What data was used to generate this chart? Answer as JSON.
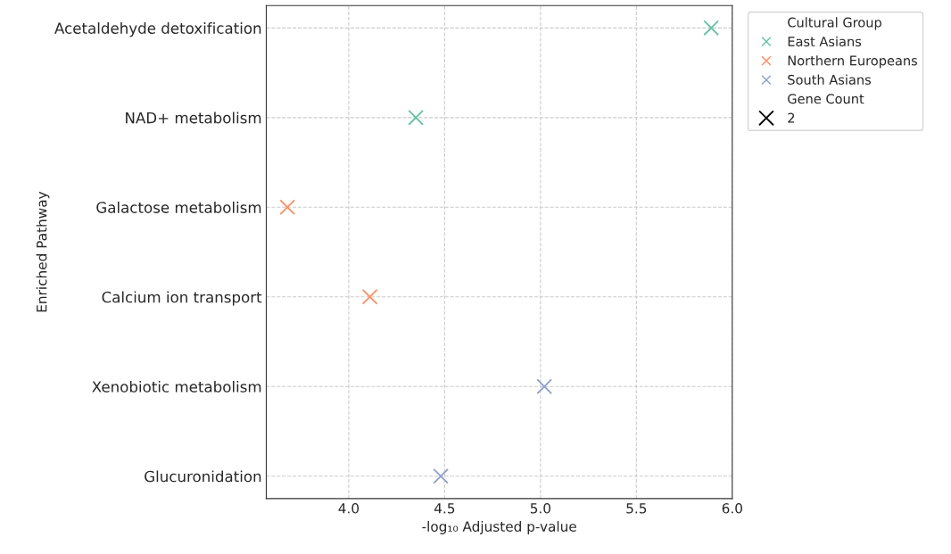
{
  "chart_data": {
    "type": "scatter",
    "orientation": "horizontal",
    "ylabel": "Enriched Pathway",
    "xlabel": "-log₁₀ Adjusted p-value",
    "categories": [
      "Acetaldehyde detoxification",
      "NAD+ metabolism",
      "Galactose metabolism",
      "Calcium ion transport",
      "Xenobiotic metabolism",
      "Glucuronidation"
    ],
    "series": [
      {
        "name": "East Asians",
        "color": "#66c2a5",
        "values": [
          5.89,
          4.35,
          null,
          null,
          null,
          null
        ]
      },
      {
        "name": "Northern Europeans",
        "color": "#fc8d62",
        "values": [
          null,
          null,
          3.68,
          4.11,
          null,
          null
        ]
      },
      {
        "name": "South Asians",
        "color": "#8da0cb",
        "values": [
          null,
          null,
          null,
          null,
          5.02,
          4.48
        ]
      }
    ],
    "legend_title": "Cultural Group",
    "annotations": [
      "Gene Count",
      "2"
    ],
    "xlim": [
      3.57,
      6.0
    ],
    "xticks": [
      {
        "value": 4.0,
        "label": "4.0"
      },
      {
        "value": 4.5,
        "label": "4.5"
      },
      {
        "value": 5.0,
        "label": "5.0"
      },
      {
        "value": 5.5,
        "label": "5.5"
      },
      {
        "value": 6.0,
        "label": "6.0"
      }
    ],
    "grid": true,
    "legend": "top right",
    "marker": "cross"
  }
}
